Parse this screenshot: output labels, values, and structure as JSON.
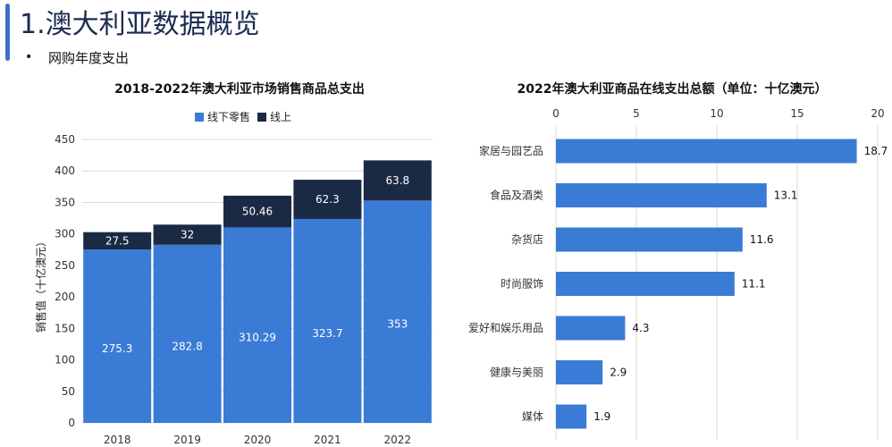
{
  "page": {
    "title": "1.澳大利亚数据概览",
    "bullet": "网购年度支出"
  },
  "colors": {
    "offline": "#3a7bd5",
    "online": "#1b2a44",
    "accent": "#3f6fc6"
  },
  "chart_data": [
    {
      "type": "bar",
      "stacked": true,
      "title": "2018-2022年澳大利亚市场销售商品总支出",
      "ylabel": "销售值（十亿澳元）",
      "xlabel": "",
      "categories": [
        "2018",
        "2019",
        "2020",
        "2021",
        "2022"
      ],
      "series": [
        {
          "name": "线下零售",
          "values": [
            275.3,
            282.8,
            310.29,
            323.7,
            353
          ]
        },
        {
          "name": "线上",
          "values": [
            27.5,
            32,
            50.46,
            62.3,
            63.8
          ]
        }
      ],
      "value_labels": [
        [
          "275.3",
          "282.8",
          "310.29",
          "323.7",
          "353"
        ],
        [
          "27.5",
          "32",
          "50.46",
          "62.3",
          "63.8"
        ]
      ],
      "ylim": [
        0,
        450
      ],
      "yticks": [
        "0",
        "50",
        "100",
        "150",
        "200",
        "250",
        "300",
        "350",
        "400",
        "450"
      ],
      "grid": true,
      "legend": "top-center"
    },
    {
      "type": "bar",
      "orientation": "horizontal",
      "title": "2022年澳大利亚商品在线支出总额（单位：十亿澳元）",
      "categories": [
        "家居与园艺品",
        "食品及酒类",
        "杂货店",
        "时尚服饰",
        "爱好和娱乐用品",
        "健康与美丽",
        "媒体"
      ],
      "values": [
        18.7,
        13.1,
        11.6,
        11.1,
        4.3,
        2.9,
        1.9
      ],
      "value_labels": [
        "18.7",
        "13.1",
        "11.6",
        "11.1",
        "4.3",
        "2.9",
        "1.9"
      ],
      "xlim": [
        0,
        20
      ],
      "xticks": [
        "0",
        "5",
        "10",
        "15",
        "20"
      ],
      "xaxis_position": "top",
      "grid": true
    }
  ]
}
